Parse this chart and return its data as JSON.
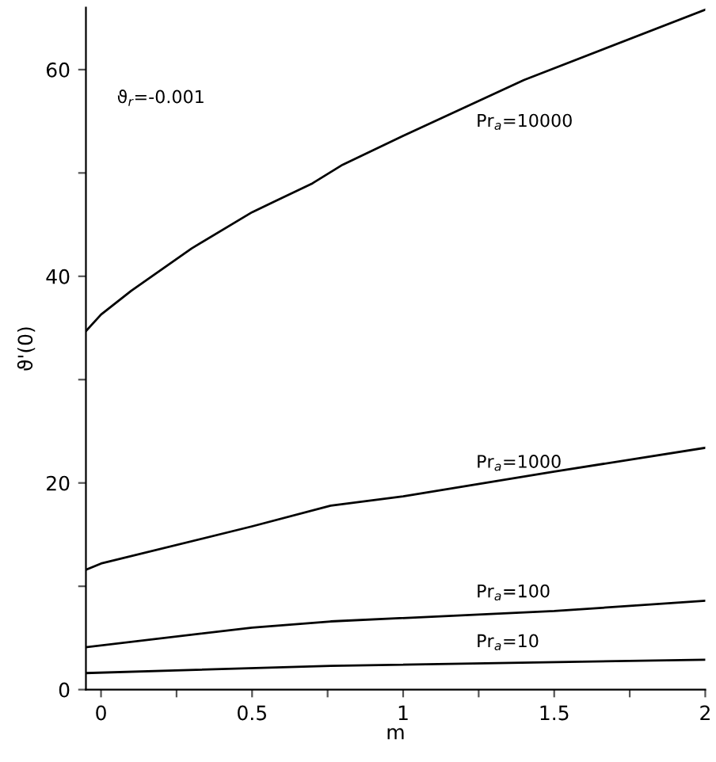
{
  "chart_data": {
    "type": "line",
    "xlabel": "m",
    "ylabel": "ϑ'(0)",
    "xlim": [
      -0.05,
      2
    ],
    "ylim": [
      0,
      66
    ],
    "xticks": [
      0,
      {
        "value": 0.25,
        "label": null
      },
      0.5,
      {
        "value": 0.75,
        "label": null
      },
      1,
      {
        "value": 1.25,
        "label": null
      },
      1.5,
      {
        "value": 1.75,
        "label": null
      },
      2
    ],
    "yticks": [
      0,
      {
        "value": 10,
        "label": null
      },
      20,
      {
        "value": 30,
        "label": null
      },
      40,
      {
        "value": 50,
        "label": null
      },
      60
    ],
    "grid": false,
    "legend": false,
    "marker": "none",
    "line_style": "solid",
    "series": [
      {
        "color": "#000000",
        "x": [
          -0.05,
          0,
          0.1,
          0.3,
          0.5,
          0.7,
          0.8,
          1.0,
          1.4,
          2
        ],
        "values": [
          34.7,
          36.3,
          38.6,
          42.7,
          46.2,
          49.0,
          50.8,
          53.6,
          59.0,
          65.8
        ]
      },
      {
        "color": "#000000",
        "x": [
          -0.05,
          0,
          0.5,
          0.76,
          1,
          1.5,
          2
        ],
        "values": [
          11.6,
          12.2,
          15.8,
          17.8,
          18.7,
          21.1,
          23.4
        ]
      },
      {
        "color": "#000000",
        "x": [
          -0.05,
          0.5,
          0.76,
          1.5,
          2
        ],
        "values": [
          4.1,
          6.0,
          6.6,
          7.6,
          8.6
        ]
      },
      {
        "color": "#000000",
        "x": [
          -0.05,
          0.76,
          2
        ],
        "values": [
          1.6,
          2.3,
          2.9
        ]
      }
    ],
    "annotations": [
      "Pr$_{a}$=10000",
      "Pr$_{a}$=1000",
      "Pr$_{a}$=100",
      "Pr$_{a}$=10",
      "ϑ$_{r}$=-0.001"
    ]
  }
}
